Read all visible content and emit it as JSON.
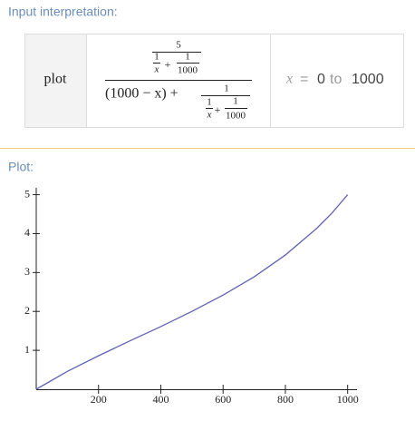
{
  "header": {
    "input_title": "Input interpretation:",
    "plot_title": "Plot:"
  },
  "input": {
    "function": "plot",
    "formula": {
      "num": "5",
      "num_a": "1",
      "num_b": "x",
      "num_plus": "+",
      "num_c": "1",
      "num_d": "1000",
      "den_left": "(1000 − x) +",
      "den_top": "1",
      "den_a": "1",
      "den_b": "x",
      "den_plus": "+",
      "den_c": "1",
      "den_d": "1000"
    },
    "range": {
      "variable": "x",
      "equals": "=",
      "from": "0",
      "word": "to",
      "to": "1000"
    }
  },
  "chart_data": {
    "type": "line",
    "color": "#5f63b0",
    "x": [
      0,
      100,
      200,
      300,
      400,
      500,
      600,
      700,
      800,
      900,
      950,
      1000
    ],
    "values": [
      0,
      0.46,
      0.86,
      1.24,
      1.61,
      2.0,
      2.42,
      2.89,
      3.45,
      4.13,
      4.53,
      5
    ],
    "xlim": [
      0,
      1030
    ],
    "ylim": [
      0,
      5.2
    ],
    "xticks": [
      200,
      400,
      600,
      800,
      1000
    ],
    "yticks": [
      1,
      2,
      3,
      4,
      5
    ]
  }
}
